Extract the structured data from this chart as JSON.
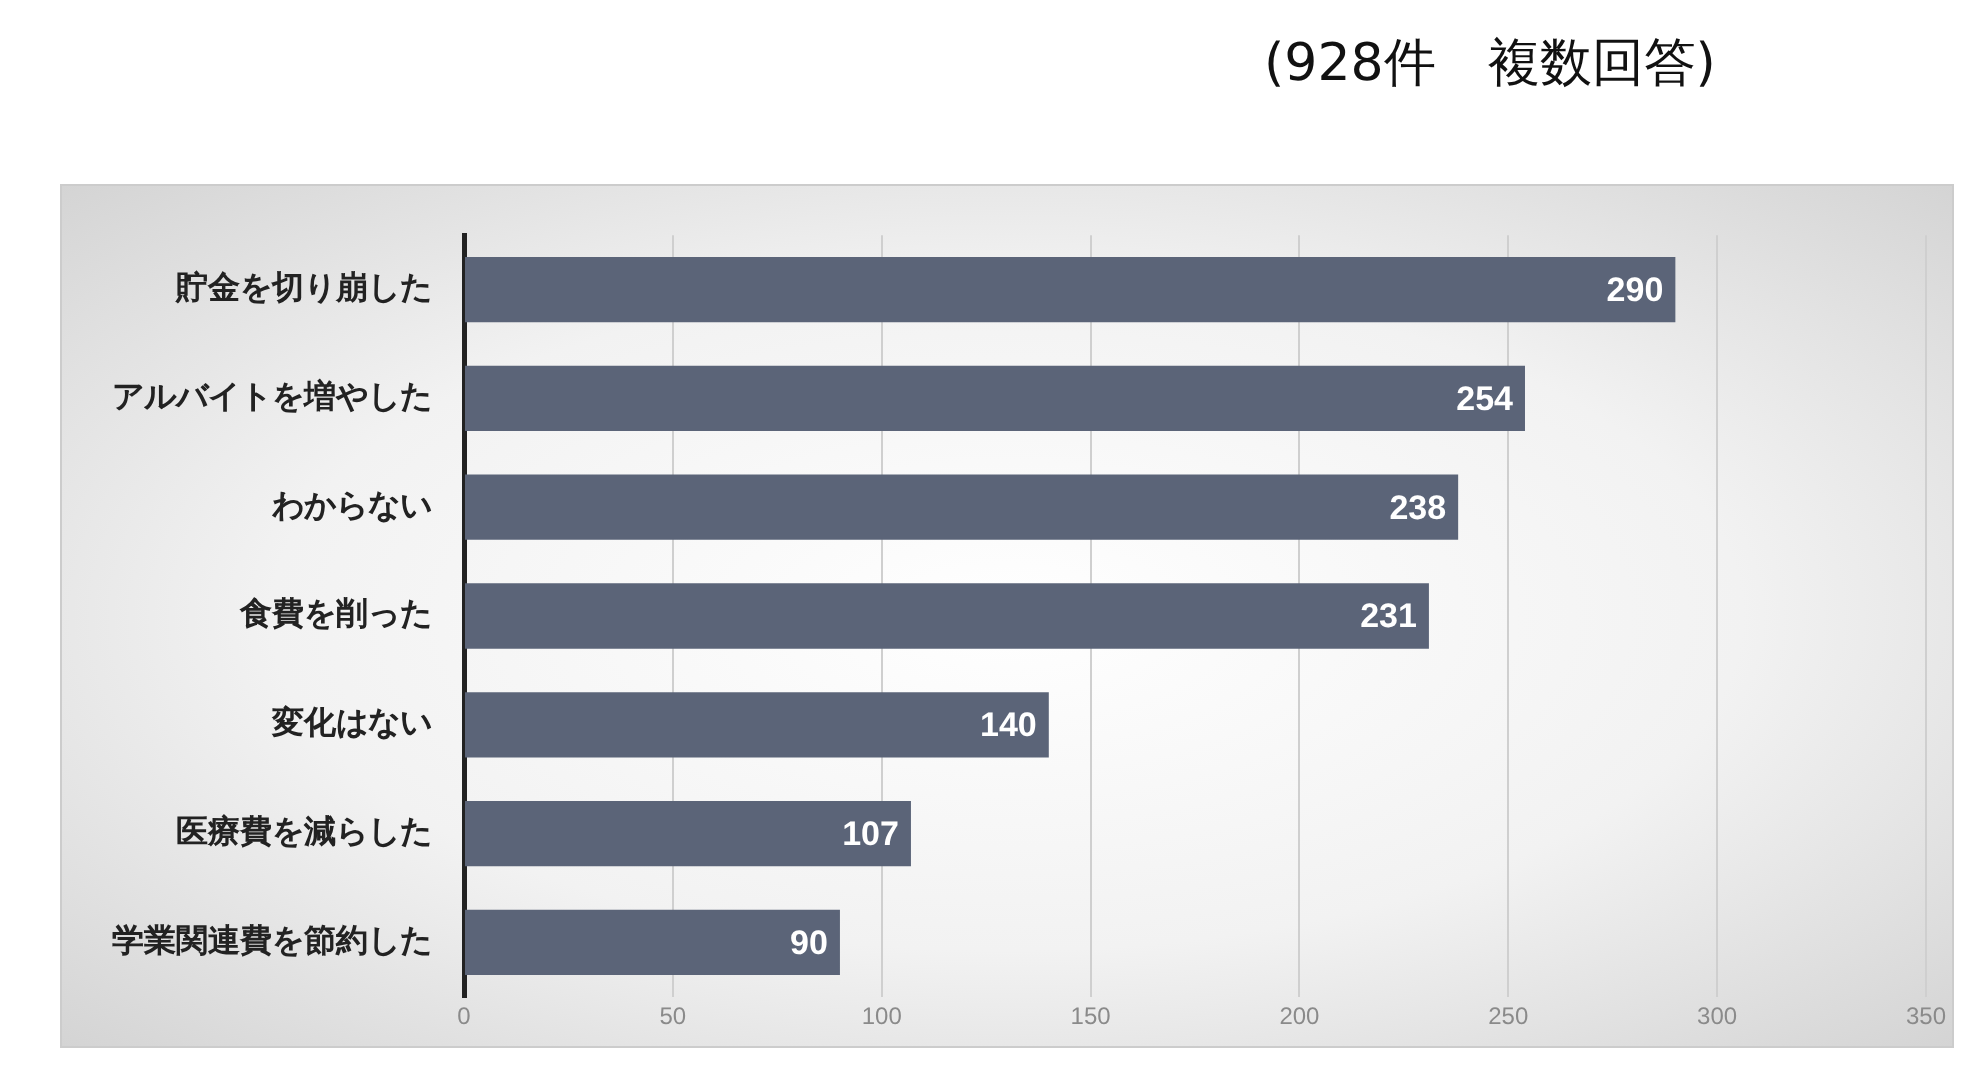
{
  "chart_data": {
    "type": "bar",
    "orientation": "horizontal",
    "title": "(928件　複数回答)",
    "categories": [
      "貯金を切り崩した",
      "アルバイトを増やした",
      "わからない",
      "食費を削った",
      "変化はない",
      "医療費を減らした",
      "学業関連費を節約した"
    ],
    "values": [
      290,
      254,
      238,
      231,
      140,
      107,
      90
    ],
    "color": "#5b6478",
    "xlim": [
      0,
      350
    ],
    "xticks": [
      0,
      50,
      100,
      150,
      200,
      250,
      300,
      350
    ],
    "grid": "x",
    "data_labels": true
  }
}
